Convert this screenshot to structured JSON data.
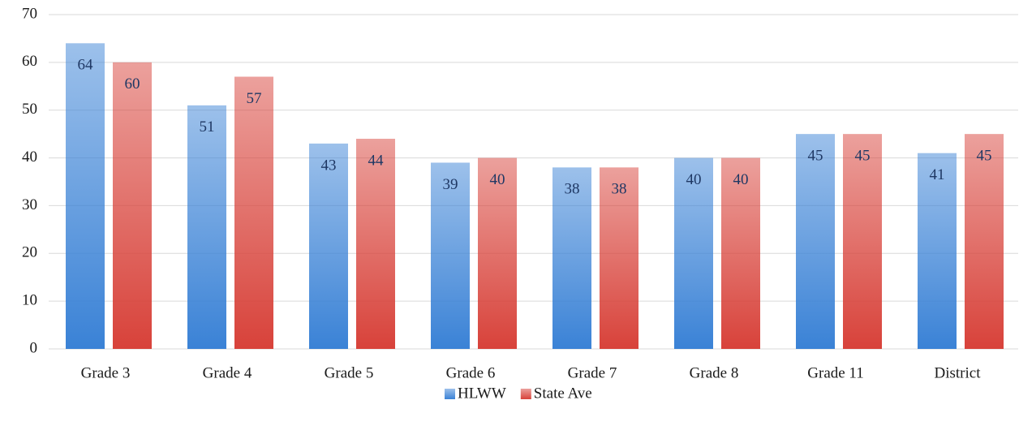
{
  "chart_data": {
    "type": "bar",
    "categories": [
      "Grade 3",
      "Grade 4",
      "Grade 5",
      "Grade 6",
      "Grade 7",
      "Grade 8",
      "Grade 11",
      "District"
    ],
    "series": [
      {
        "name": "HLWW",
        "color": "#3a82d6",
        "values": [
          64,
          51,
          43,
          39,
          38,
          40,
          45,
          41
        ]
      },
      {
        "name": "State Ave",
        "color": "#d8423a",
        "values": [
          60,
          57,
          44,
          40,
          38,
          40,
          45,
          45
        ]
      }
    ],
    "ylim": [
      0,
      70
    ],
    "yticks": [
      0,
      10,
      20,
      30,
      40,
      50,
      60,
      70
    ],
    "grid": true,
    "legend": "bottom"
  }
}
